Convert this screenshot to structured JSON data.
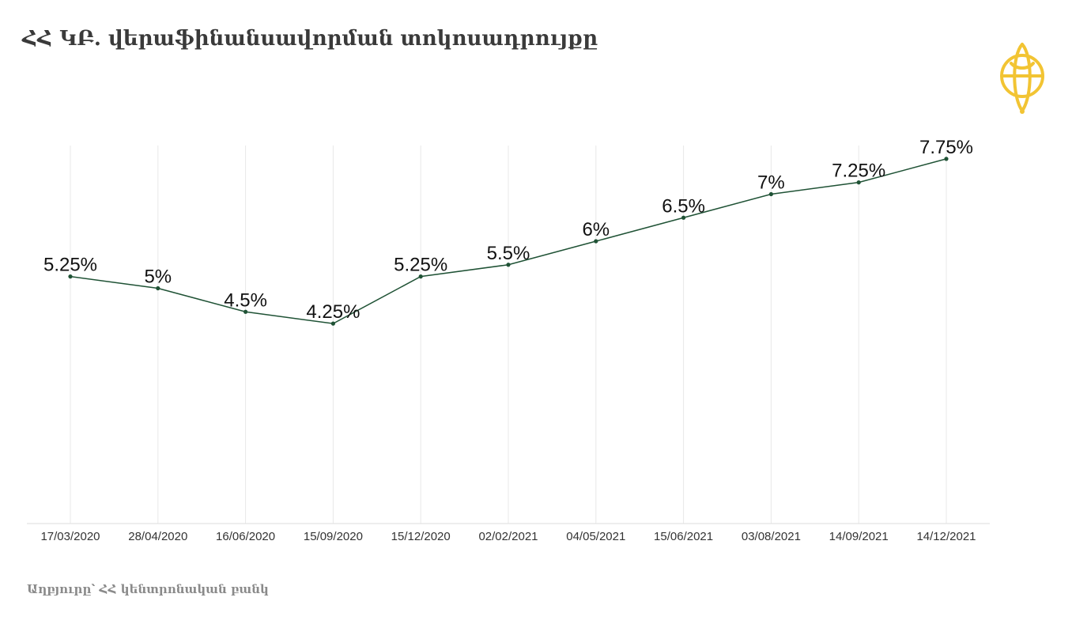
{
  "header": {
    "title": "ՀՀ ԿԲ. վերաֆինանսավորման տոկոսադրույքը"
  },
  "footer": {
    "source": "Աղբյուրը՝ ՀՀ կենտրոնական բանկ"
  },
  "logo": {
    "icon": "golden-emblem-icon",
    "color": "#f2c433"
  },
  "chart_data": {
    "type": "line",
    "title": "ՀՀ ԿԲ. վերաֆինանսավորման տոկոսադրույքը",
    "xlabel": "",
    "ylabel": "",
    "categories": [
      "17/03/2020",
      "28/04/2020",
      "16/06/2020",
      "15/09/2020",
      "15/12/2020",
      "02/02/2021",
      "04/05/2021",
      "15/06/2021",
      "03/08/2021",
      "14/09/2021",
      "14/12/2021"
    ],
    "series": [
      {
        "values": [
          5.25,
          5,
          4.5,
          4.25,
          5.25,
          5.5,
          6,
          6.5,
          7,
          7.25,
          7.75
        ],
        "labels": [
          "5.25%",
          "5%",
          "4.5%",
          "4.25%",
          "5.25%",
          "5.5%",
          "6%",
          "6.5%",
          "7%",
          "7.25%",
          "7.75%"
        ],
        "color": "#1f5235"
      }
    ],
    "ylim": [
      0,
      8
    ],
    "grid": "vertical",
    "legend": "none"
  }
}
